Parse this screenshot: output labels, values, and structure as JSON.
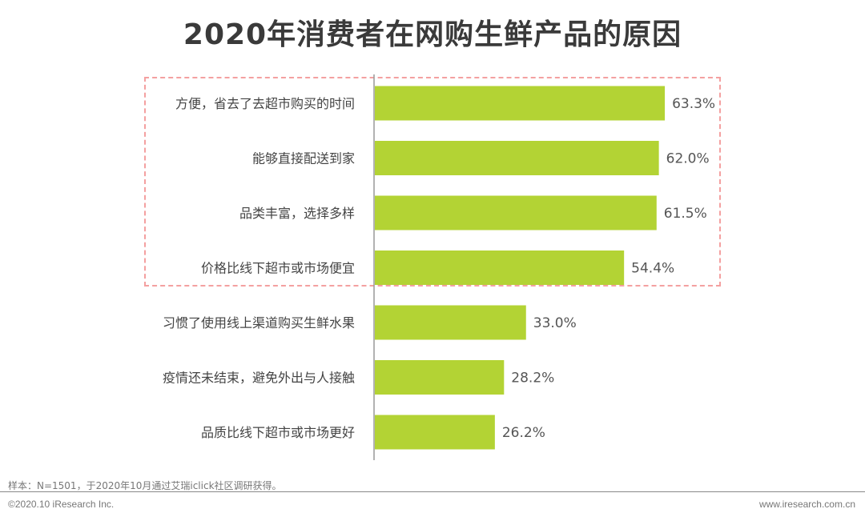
{
  "chart_data": {
    "type": "bar",
    "orientation": "horizontal",
    "title": "2020年消费者在网购生鲜产品的原因",
    "categories": [
      "方便，省去了去超市购买的时间",
      "能够直接配送到家",
      "品类丰富，选择多样",
      "价格比线下超市或市场便宜",
      "习惯了使用线上渠道购买生鲜水果",
      "疫情还未结束，避免外出与人接触",
      "品质比线下超市或市场更好"
    ],
    "values": [
      63.3,
      62.0,
      61.5,
      54.4,
      33.0,
      28.2,
      26.2
    ],
    "value_labels": [
      "63.3%",
      "62.0%",
      "61.5%",
      "54.4%",
      "33.0%",
      "28.2%",
      "26.2%"
    ],
    "highlighted_count": 4,
    "xlim": [
      0,
      100
    ],
    "bar_color": "#b3d334",
    "highlight_color": "#f4a0a0"
  },
  "footer": {
    "sample": "样本：N=1501，于2020年10月通过艾瑞iclick社区调研获得。",
    "copyright": "©2020.10 iResearch Inc.",
    "website": "www.iresearch.com.cn"
  }
}
